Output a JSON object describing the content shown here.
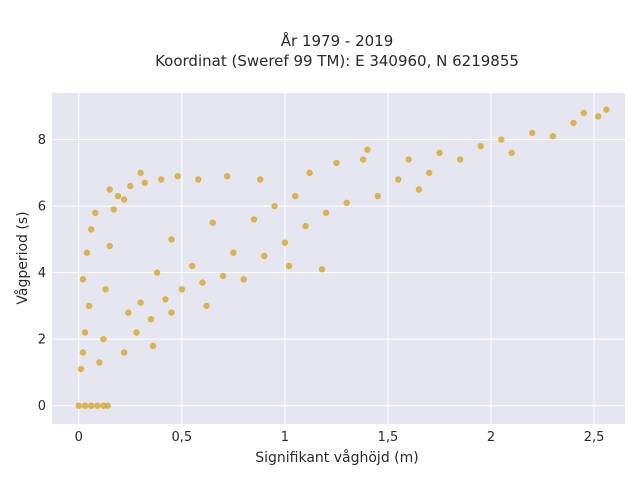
{
  "chart_data": {
    "type": "scatter",
    "title": "År 1979 - 2019",
    "subtitle": "Koordinat (Sweref 99 TM): E 340960, N 6219855",
    "xlabel": "Signifikant våghöjd (m)",
    "ylabel": "Vågperiod (s)",
    "xlim": [
      -0.13,
      2.65
    ],
    "ylim": [
      -0.55,
      9.4
    ],
    "x_ticks": [
      0,
      0.5,
      1,
      1.5,
      2,
      2.5
    ],
    "x_tick_labels": [
      "0",
      "0,5",
      "1",
      "1,5",
      "2",
      "2,5"
    ],
    "y_ticks": [
      0,
      2,
      4,
      6,
      8
    ],
    "y_tick_labels": [
      "0",
      "2",
      "4",
      "6",
      "8"
    ],
    "grid": true,
    "colors": {
      "marker": "#d4a21e",
      "plot_background": "#e5e6f0",
      "grid": "#ffffff"
    },
    "series": [
      {
        "points": [
          [
            0.0,
            0.0
          ],
          [
            0.03,
            0.0
          ],
          [
            0.06,
            0.0
          ],
          [
            0.09,
            0.0
          ],
          [
            0.12,
            0.0
          ],
          [
            0.14,
            0.0
          ],
          [
            0.01,
            1.1
          ],
          [
            0.02,
            1.6
          ],
          [
            0.03,
            2.2
          ],
          [
            0.05,
            3.0
          ],
          [
            0.02,
            3.8
          ],
          [
            0.04,
            4.6
          ],
          [
            0.06,
            5.3
          ],
          [
            0.08,
            5.8
          ],
          [
            0.1,
            1.3
          ],
          [
            0.12,
            2.0
          ],
          [
            0.13,
            3.5
          ],
          [
            0.15,
            4.8
          ],
          [
            0.17,
            5.9
          ],
          [
            0.19,
            6.3
          ],
          [
            0.22,
            1.6
          ],
          [
            0.24,
            2.8
          ],
          [
            0.25,
            6.6
          ],
          [
            0.28,
            2.2
          ],
          [
            0.3,
            3.1
          ],
          [
            0.32,
            6.7
          ],
          [
            0.35,
            2.6
          ],
          [
            0.38,
            4.0
          ],
          [
            0.4,
            6.8
          ],
          [
            0.42,
            3.2
          ],
          [
            0.45,
            5.0
          ],
          [
            0.48,
            6.9
          ],
          [
            0.5,
            3.5
          ],
          [
            0.55,
            4.2
          ],
          [
            0.58,
            6.8
          ],
          [
            0.6,
            3.7
          ],
          [
            0.65,
            5.5
          ],
          [
            0.7,
            3.9
          ],
          [
            0.72,
            6.9
          ],
          [
            0.75,
            4.6
          ],
          [
            0.8,
            3.8
          ],
          [
            0.85,
            5.6
          ],
          [
            0.88,
            6.8
          ],
          [
            0.9,
            4.5
          ],
          [
            0.95,
            6.0
          ],
          [
            1.0,
            4.9
          ],
          [
            1.05,
            6.3
          ],
          [
            1.1,
            5.4
          ],
          [
            1.12,
            7.0
          ],
          [
            1.2,
            5.8
          ],
          [
            1.25,
            7.3
          ],
          [
            1.3,
            6.1
          ],
          [
            1.38,
            7.4
          ],
          [
            1.45,
            6.3
          ],
          [
            1.55,
            6.8
          ],
          [
            1.6,
            7.4
          ],
          [
            1.7,
            7.0
          ],
          [
            1.75,
            7.6
          ],
          [
            1.85,
            7.4
          ],
          [
            1.95,
            7.8
          ],
          [
            2.05,
            8.0
          ],
          [
            2.1,
            7.6
          ],
          [
            2.2,
            8.2
          ],
          [
            2.3,
            8.1
          ],
          [
            2.4,
            8.5
          ],
          [
            2.45,
            8.8
          ],
          [
            2.52,
            8.7
          ],
          [
            2.56,
            8.9
          ],
          [
            0.62,
            3.0
          ],
          [
            1.65,
            6.5
          ],
          [
            1.02,
            4.2
          ],
          [
            1.18,
            4.1
          ],
          [
            0.45,
            2.8
          ],
          [
            0.36,
            1.8
          ],
          [
            0.22,
            6.2
          ],
          [
            0.15,
            6.5
          ],
          [
            0.3,
            7.0
          ],
          [
            1.4,
            7.7
          ]
        ]
      }
    ]
  }
}
